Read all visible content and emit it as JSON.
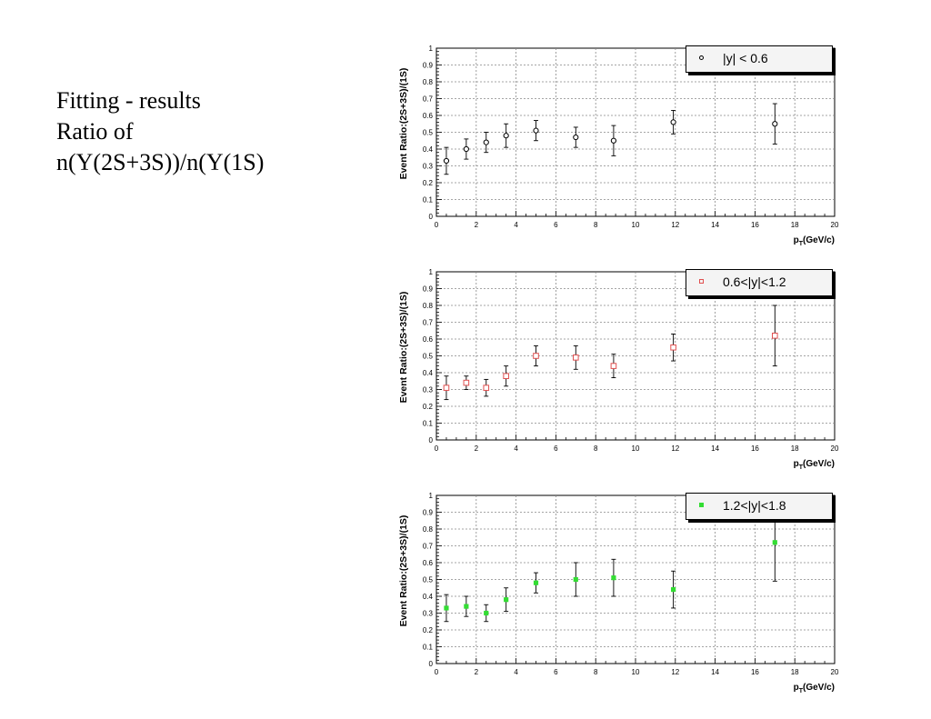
{
  "slide": {
    "lines": [
      "Fitting - results",
      "Ratio of",
      "n(Υ(2S+3S))/n(Υ(1S)"
    ]
  },
  "chart_data": [
    {
      "type": "scatter",
      "ylabel": "Event Ratio:(2S+3S)/(1S)",
      "xlabel_main": "p",
      "xlabel_sub": "T",
      "xlabel_unit": "(GeV/c)",
      "xlim": [
        0,
        20
      ],
      "ylim": [
        0,
        1
      ],
      "grid": true,
      "legend_position": "top-right",
      "xticks": [
        0,
        2,
        4,
        6,
        8,
        10,
        12,
        14,
        16,
        18,
        20
      ],
      "yticks": [
        0,
        0.1,
        0.2,
        0.3,
        0.4,
        0.5,
        0.6,
        0.7,
        0.8,
        0.9,
        1
      ],
      "series": [
        {
          "name": "|y| < 0.6",
          "marker": "open-circle",
          "color": "#000000",
          "x": [
            0.5,
            1.5,
            2.5,
            3.5,
            5.0,
            7.0,
            8.9,
            11.9,
            17.0
          ],
          "y": [
            0.33,
            0.4,
            0.44,
            0.48,
            0.51,
            0.47,
            0.45,
            0.56,
            0.55
          ],
          "yerr": [
            0.08,
            0.06,
            0.06,
            0.07,
            0.06,
            0.06,
            0.09,
            0.07,
            0.12
          ]
        }
      ]
    },
    {
      "type": "scatter",
      "ylabel": "Event Ratio:(2S+3S)/(1S)",
      "xlabel_main": "p",
      "xlabel_sub": "T",
      "xlabel_unit": "(GeV/c)",
      "xlim": [
        0,
        20
      ],
      "ylim": [
        0,
        1
      ],
      "grid": true,
      "legend_position": "top-right",
      "xticks": [
        0,
        2,
        4,
        6,
        8,
        10,
        12,
        14,
        16,
        18,
        20
      ],
      "yticks": [
        0,
        0.1,
        0.2,
        0.3,
        0.4,
        0.5,
        0.6,
        0.7,
        0.8,
        0.9,
        1
      ],
      "series": [
        {
          "name": "0.6<|y|<1.2",
          "marker": "open-square",
          "color": "#e05050",
          "x": [
            0.5,
            1.5,
            2.5,
            3.5,
            5.0,
            7.0,
            8.9,
            11.9,
            17.0
          ],
          "y": [
            0.31,
            0.34,
            0.31,
            0.38,
            0.5,
            0.49,
            0.44,
            0.55,
            0.62
          ],
          "yerr": [
            0.07,
            0.04,
            0.05,
            0.06,
            0.06,
            0.07,
            0.07,
            0.08,
            0.18
          ]
        }
      ]
    },
    {
      "type": "scatter",
      "ylabel": "Event Ratio:(2S+3S)/(1S)",
      "xlabel_main": "p",
      "xlabel_sub": "T",
      "xlabel_unit": "(GeV/c)",
      "xlim": [
        0,
        20
      ],
      "ylim": [
        0,
        1
      ],
      "grid": true,
      "legend_position": "top-right",
      "xticks": [
        0,
        2,
        4,
        6,
        8,
        10,
        12,
        14,
        16,
        18,
        20
      ],
      "yticks": [
        0,
        0.1,
        0.2,
        0.3,
        0.4,
        0.5,
        0.6,
        0.7,
        0.8,
        0.9,
        1
      ],
      "series": [
        {
          "name": "1.2<|y|<1.8",
          "marker": "filled-square",
          "color": "#33dd33",
          "x": [
            0.5,
            1.5,
            2.5,
            3.5,
            5.0,
            7.0,
            8.9,
            11.9,
            17.0
          ],
          "y": [
            0.33,
            0.34,
            0.3,
            0.38,
            0.48,
            0.5,
            0.51,
            0.44,
            0.72
          ],
          "yerr": [
            0.08,
            0.06,
            0.05,
            0.07,
            0.06,
            0.1,
            0.11,
            0.11,
            0.23
          ]
        }
      ]
    }
  ]
}
